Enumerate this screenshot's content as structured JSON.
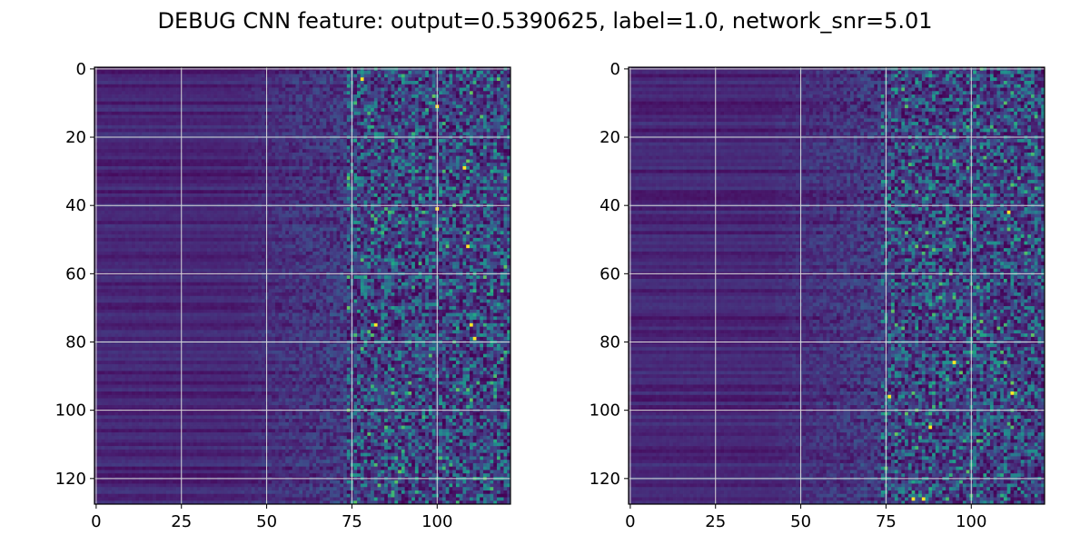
{
  "figure": {
    "title": "DEBUG CNN feature: output=0.5390625, label=1.0, network_snr=5.01"
  },
  "chart_data": [
    {
      "type": "heatmap",
      "title": "",
      "xlabel": "",
      "ylabel": "",
      "n_cols": 122,
      "n_rows": 128,
      "xlim": [
        0,
        122
      ],
      "ylim": [
        128,
        0
      ],
      "xticks": [
        0,
        25,
        50,
        75,
        100
      ],
      "yticks": [
        0,
        20,
        40,
        60,
        80,
        100,
        120
      ],
      "grid": true,
      "colormap": "viridis",
      "description_of_values": "Row-banded low values on left columns (0-50), increasingly noisy higher values toward right columns (75-122) with sparse bright yellow outliers",
      "hotspots": [
        [
          78,
          3
        ],
        [
          100,
          11
        ],
        [
          100,
          41
        ],
        [
          109,
          52
        ],
        [
          82,
          75
        ],
        [
          110,
          75
        ],
        [
          111,
          79
        ],
        [
          108,
          29
        ]
      ]
    },
    {
      "type": "heatmap",
      "title": "",
      "xlabel": "",
      "ylabel": "",
      "n_cols": 122,
      "n_rows": 128,
      "xlim": [
        0,
        122
      ],
      "ylim": [
        128,
        0
      ],
      "xticks": [
        0,
        25,
        50,
        75,
        100
      ],
      "yticks": [
        0,
        20,
        40,
        60,
        80,
        100,
        120
      ],
      "grid": true,
      "colormap": "viridis",
      "description_of_values": "Row-banded low values on left columns (0-50), increasingly noisy higher values toward right columns (75-122) with sparse bright yellow outliers",
      "hotspots": [
        [
          111,
          42
        ],
        [
          88,
          105
        ],
        [
          95,
          86
        ],
        [
          112,
          95
        ],
        [
          83,
          126
        ],
        [
          86,
          126
        ],
        [
          76,
          96
        ]
      ]
    }
  ],
  "colors": {
    "viridis_low": "#440154",
    "viridis_mid": "#21918c",
    "viridis_high": "#fde725",
    "grid": "#d9d9d9",
    "axes": "#000000"
  }
}
